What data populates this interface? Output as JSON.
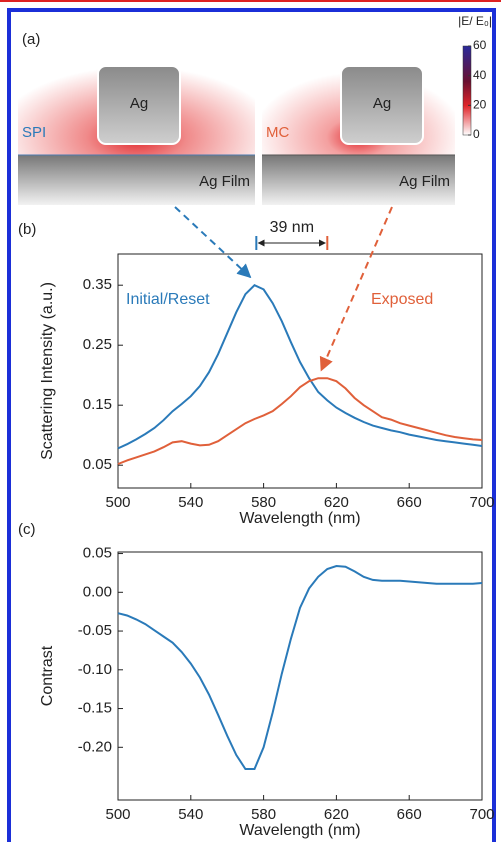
{
  "panel_a": {
    "label": "(a)",
    "left": {
      "particle": "Ag",
      "mode": "SPI",
      "film": "Ag Film"
    },
    "right": {
      "particle": "Ag",
      "mode": "MC",
      "film": "Ag Film"
    },
    "colorbar": {
      "title": "|E/ E₀|",
      "lim": [
        0,
        60
      ],
      "ticks": [
        0,
        20,
        40,
        60
      ]
    }
  },
  "chart_data": [
    {
      "type": "line",
      "panel_label": "(b)",
      "xlabel": "Wavelength (nm)",
      "ylabel": "Scattering Intensity (a.u.)",
      "annotation": "39 nm",
      "peak_markers": [
        576,
        615
      ],
      "x": [
        500,
        505,
        510,
        515,
        520,
        525,
        530,
        535,
        540,
        545,
        550,
        555,
        560,
        565,
        570,
        575,
        580,
        585,
        590,
        595,
        600,
        605,
        610,
        615,
        620,
        625,
        630,
        635,
        640,
        645,
        650,
        655,
        660,
        665,
        670,
        675,
        680,
        685,
        690,
        695,
        700
      ],
      "series": [
        {
          "name": "Initial/Reset",
          "color": "#2a7ab9",
          "values": [
            0.078,
            0.085,
            0.093,
            0.102,
            0.112,
            0.125,
            0.14,
            0.152,
            0.165,
            0.182,
            0.205,
            0.235,
            0.27,
            0.305,
            0.335,
            0.35,
            0.343,
            0.32,
            0.29,
            0.255,
            0.222,
            0.195,
            0.172,
            0.158,
            0.146,
            0.137,
            0.129,
            0.122,
            0.116,
            0.112,
            0.108,
            0.105,
            0.101,
            0.098,
            0.095,
            0.092,
            0.09,
            0.088,
            0.086,
            0.084,
            0.082
          ]
        },
        {
          "name": "Exposed",
          "color": "#e0603a",
          "values": [
            0.052,
            0.058,
            0.063,
            0.068,
            0.073,
            0.08,
            0.088,
            0.09,
            0.086,
            0.083,
            0.084,
            0.09,
            0.1,
            0.11,
            0.12,
            0.127,
            0.133,
            0.14,
            0.152,
            0.165,
            0.18,
            0.19,
            0.195,
            0.195,
            0.19,
            0.178,
            0.162,
            0.15,
            0.14,
            0.13,
            0.126,
            0.12,
            0.116,
            0.112,
            0.108,
            0.104,
            0.1,
            0.097,
            0.095,
            0.093,
            0.092
          ]
        }
      ],
      "xlim": [
        500,
        700
      ],
      "xticks": [
        500,
        540,
        580,
        620,
        660,
        700
      ],
      "ylim": [
        0.012,
        0.402
      ],
      "yticks": [
        0.05,
        0.15,
        0.25,
        0.35
      ]
    },
    {
      "type": "line",
      "panel_label": "(c)",
      "xlabel": "Wavelength (nm)",
      "ylabel": "Contrast",
      "x": [
        500,
        505,
        510,
        515,
        520,
        525,
        530,
        535,
        540,
        545,
        550,
        555,
        560,
        565,
        570,
        575,
        580,
        585,
        590,
        595,
        600,
        605,
        610,
        615,
        620,
        625,
        630,
        635,
        640,
        645,
        650,
        655,
        660,
        665,
        670,
        675,
        680,
        685,
        690,
        695,
        700
      ],
      "series": [
        {
          "color": "#2a7ab9",
          "values": [
            -0.027,
            -0.03,
            -0.035,
            -0.041,
            -0.049,
            -0.057,
            -0.065,
            -0.077,
            -0.092,
            -0.11,
            -0.132,
            -0.158,
            -0.185,
            -0.21,
            -0.228,
            -0.228,
            -0.2,
            -0.155,
            -0.105,
            -0.06,
            -0.02,
            0.005,
            0.02,
            0.03,
            0.034,
            0.033,
            0.027,
            0.02,
            0.016,
            0.015,
            0.015,
            0.015,
            0.014,
            0.013,
            0.012,
            0.011,
            0.011,
            0.011,
            0.011,
            0.011,
            0.012
          ]
        }
      ],
      "xlim": [
        500,
        700
      ],
      "xticks": [
        500,
        540,
        580,
        620,
        660,
        700
      ],
      "ylim": [
        -0.268,
        0.052
      ],
      "yticks": [
        0.05,
        {
          "value": 0,
          "label": "0.00"
        },
        -0.05,
        {
          "value": -0.1,
          "label": "-0.10"
        },
        -0.15,
        {
          "value": -0.2,
          "label": "-0.20"
        }
      ]
    }
  ]
}
